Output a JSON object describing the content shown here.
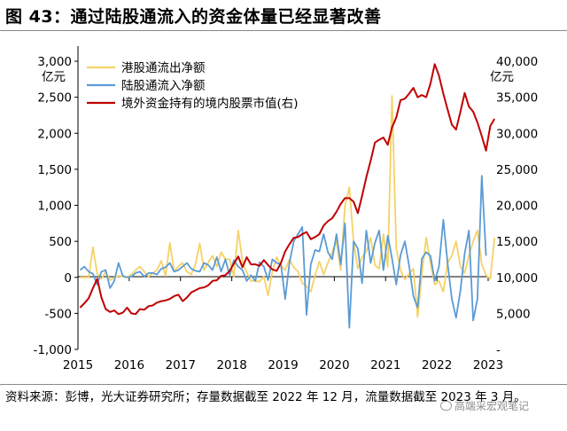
{
  "title": "图 43：通过陆股通流入的资金体量已经显著改善",
  "footer": "资料来源：彭博，光大证券研究所；存量数据截至 2022 年 12 月，流量数据截至 2023 年 3 月。",
  "watermark": "高端采宏观笔记",
  "chart_data": {
    "type": "line",
    "y_left_unit": "亿元",
    "y_right_unit": "亿元",
    "y_left_lim": [
      -1000,
      3000
    ],
    "y_right_lim": [
      0,
      40000
    ],
    "y_left_ticks": [
      "3,000",
      "2,500",
      "2,000",
      "1,500",
      "1,000",
      "500",
      "0",
      "-500",
      "-1,000"
    ],
    "y_right_ticks": [
      "40,000",
      "35,000",
      "30,000",
      "25,000",
      "20,000",
      "15,000",
      "10,000",
      "5,000",
      "-"
    ],
    "x_ticks": [
      "2015",
      "2016",
      "2017",
      "2018",
      "2019",
      "2020",
      "2021",
      "2022",
      "2023"
    ],
    "x_start": "2015-01",
    "legend_position": "top-left",
    "colors": {
      "southbound": "#F5D265",
      "northbound": "#5B9BD5",
      "holding": "#C00000"
    },
    "series": [
      {
        "name": "港股通流出净额",
        "key": "southbound",
        "axis": "left",
        "values": [
          0,
          0,
          0,
          420,
          50,
          -20,
          80,
          -40,
          0,
          20,
          10,
          0,
          40,
          100,
          150,
          80,
          10,
          60,
          100,
          230,
          20,
          480,
          80,
          150,
          200,
          80,
          40,
          180,
          470,
          100,
          210,
          300,
          150,
          350,
          250,
          250,
          10,
          650,
          220,
          70,
          -50,
          -50,
          -60,
          10,
          -250,
          80,
          280,
          160,
          100,
          250,
          140,
          80,
          -80,
          -120,
          -200,
          30,
          220,
          40,
          200,
          350,
          500,
          100,
          1000,
          1250,
          500,
          120,
          280,
          360,
          550,
          170,
          120,
          600,
          150,
          2520,
          400,
          100,
          -30,
          50,
          120,
          -550,
          50,
          550,
          200,
          -100,
          -50,
          -200,
          200,
          300,
          500,
          150,
          60,
          300,
          500,
          650,
          180,
          30,
          -20,
          550
        ]
      },
      {
        "name": "陆股通流入净额",
        "key": "northbound",
        "axis": "left",
        "values": [
          100,
          150,
          80,
          50,
          -100,
          80,
          100,
          -150,
          -50,
          200,
          20,
          0,
          10,
          60,
          80,
          10,
          60,
          60,
          40,
          120,
          140,
          200,
          80,
          100,
          150,
          200,
          120,
          90,
          80,
          200,
          170,
          100,
          280,
          80,
          250,
          30,
          240,
          150,
          100,
          -50,
          30,
          -50,
          210,
          150,
          -40,
          250,
          200,
          180,
          -300,
          200,
          500,
          600,
          700,
          -520,
          180,
          380,
          360,
          600,
          350,
          250,
          600,
          180,
          750,
          -700,
          500,
          400,
          -80,
          650,
          200,
          480,
          650,
          100,
          580,
          260,
          -100,
          310,
          500,
          160,
          -260,
          -420,
          260,
          350,
          300,
          -50,
          150,
          800,
          200,
          -300,
          -560,
          -180,
          330,
          650,
          -600,
          -300,
          1410,
          300
        ]
      },
      {
        "name": "境外资金持有的境内股票市值(右)",
        "key": "holding",
        "axis": "right",
        "values": [
          5800,
          6400,
          7100,
          8500,
          9800,
          7200,
          5600,
          5200,
          5400,
          4900,
          5100,
          5800,
          5000,
          4900,
          5600,
          5500,
          6000,
          6100,
          6500,
          6700,
          6800,
          7000,
          7400,
          7600,
          6700,
          7200,
          7900,
          8200,
          8500,
          8600,
          8900,
          9500,
          9600,
          10200,
          10300,
          10900,
          11900,
          12900,
          11400,
          12800,
          11800,
          11800,
          11600,
          12400,
          11700,
          11100,
          10900,
          12000,
          13600,
          14600,
          15500,
          15600,
          16000,
          16300,
          15300,
          15600,
          16000,
          17200,
          17800,
          18200,
          19100,
          20200,
          21000,
          21000,
          20500,
          18900,
          21300,
          23900,
          26200,
          28700,
          29100,
          29400,
          28400,
          30800,
          32200,
          34600,
          34800,
          35500,
          36300,
          35000,
          35300,
          35000,
          36900,
          39600,
          38000,
          35500,
          33300,
          31200,
          30500,
          33000,
          35600,
          33700,
          33000,
          31500,
          29600,
          27600,
          31000,
          32000
        ]
      }
    ]
  }
}
